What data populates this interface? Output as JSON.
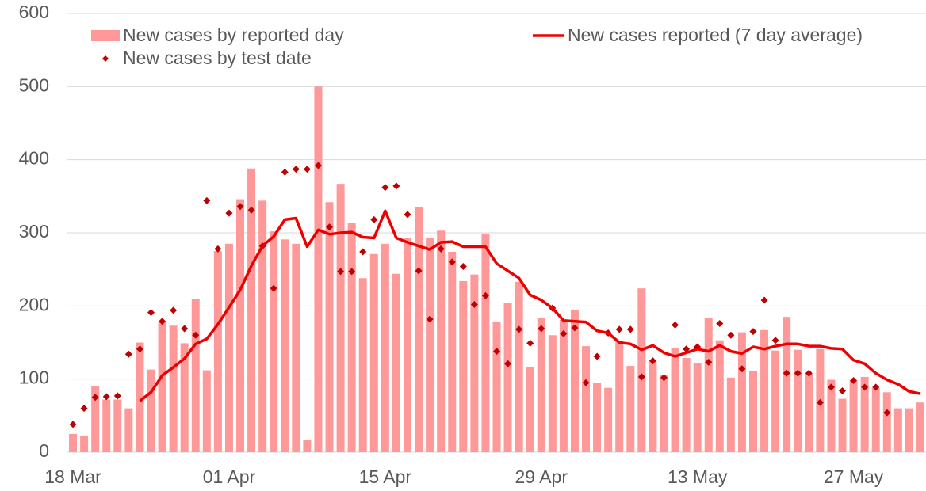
{
  "chart_data": {
    "type": "combo",
    "categories": [
      "18 Mar",
      null,
      null,
      null,
      null,
      null,
      null,
      null,
      null,
      null,
      null,
      null,
      null,
      null,
      "01 Apr",
      null,
      null,
      null,
      null,
      null,
      null,
      null,
      null,
      null,
      null,
      null,
      null,
      null,
      "15 Apr",
      null,
      null,
      null,
      null,
      null,
      null,
      null,
      null,
      null,
      null,
      null,
      null,
      null,
      "29 Apr",
      null,
      null,
      null,
      null,
      null,
      null,
      null,
      null,
      null,
      null,
      null,
      null,
      null,
      "13 May",
      null,
      null,
      null,
      null,
      null,
      null,
      null,
      null,
      null,
      null,
      null,
      null,
      null,
      "27 May",
      null,
      null,
      null,
      null,
      null,
      null
    ],
    "series": [
      {
        "name": "New cases by reported day",
        "type": "bar",
        "color": "#ff9999",
        "values": [
          25,
          22,
          90,
          72,
          72,
          60,
          150,
          113,
          178,
          173,
          149,
          210,
          112,
          275,
          285,
          346,
          388,
          344,
          302,
          291,
          285,
          17,
          500,
          342,
          367,
          313,
          238,
          271,
          285,
          244,
          293,
          335,
          293,
          303,
          274,
          234,
          243,
          299,
          178,
          204,
          233,
          117,
          183,
          160,
          181,
          195,
          145,
          95,
          88,
          152,
          118,
          224,
          124,
          106,
          142,
          129,
          122,
          183,
          153,
          102,
          164,
          111,
          167,
          139,
          185,
          140,
          107,
          141,
          99,
          73,
          98,
          103,
          88,
          82,
          60,
          60,
          68
        ]
      },
      {
        "name": "New cases reported (7 day average)",
        "type": "line",
        "color": "#ee0000",
        "values": [
          null,
          null,
          null,
          null,
          null,
          null,
          70,
          82,
          105,
          116,
          128,
          148,
          155,
          175,
          198,
          222,
          255,
          282,
          295,
          318,
          320,
          281,
          304,
          298,
          300,
          301,
          294,
          293,
          330,
          293,
          287,
          282,
          277,
          287,
          288,
          281,
          281,
          281,
          258,
          248,
          238,
          215,
          208,
          197,
          180,
          179,
          178,
          166,
          163,
          150,
          148,
          140,
          146,
          136,
          131,
          136,
          141,
          138,
          146,
          138,
          135,
          144,
          141,
          145,
          148,
          148,
          145,
          145,
          142,
          141,
          126,
          121,
          108,
          99,
          93,
          83,
          80
        ]
      },
      {
        "name": "New cases by test date",
        "type": "scatter",
        "color": "#c00000",
        "values": [
          38,
          60,
          75,
          76,
          77,
          134,
          141,
          191,
          179,
          194,
          169,
          160,
          344,
          278,
          327,
          336,
          331,
          282,
          224,
          383,
          387,
          387,
          392,
          308,
          247,
          247,
          274,
          318,
          362,
          364,
          325,
          248,
          182,
          278,
          260,
          254,
          202,
          214,
          138,
          121,
          168,
          149,
          169,
          197,
          162,
          170,
          95,
          131,
          163,
          168,
          168,
          103,
          125,
          102,
          174,
          141,
          144,
          123,
          176,
          160,
          114,
          165,
          208,
          153,
          108,
          108,
          108,
          68,
          89,
          84,
          98,
          89,
          89,
          54,
          null,
          null,
          null
        ]
      }
    ],
    "ylim": [
      0,
      600
    ],
    "yticks": [
      0,
      100,
      200,
      300,
      400,
      500,
      600
    ],
    "grid": true
  }
}
